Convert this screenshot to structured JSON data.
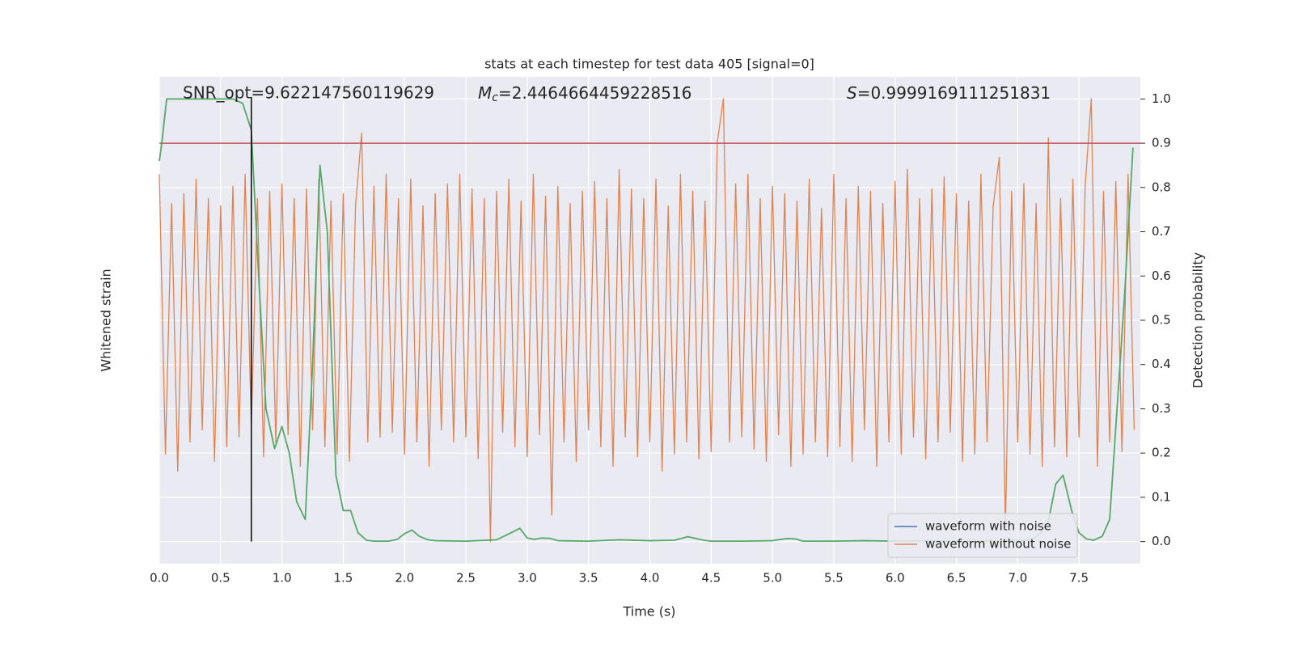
{
  "chart_data": {
    "type": "line",
    "title": "stats at each timestep for test data 405 [signal=0]",
    "x_label": "Time (s)",
    "y_label": "Whitened strain",
    "y2_label": "Detection probability",
    "annotations": [
      {
        "text": "SNR_opt=9.622147560119629"
      },
      {
        "symbol": "M",
        "subscript": "c",
        "text": "=2.4464664459228516"
      },
      {
        "symbol": "S",
        "text": "=0.9999169111251831"
      }
    ],
    "xlim": [
      0,
      8
    ],
    "xticks": [
      {
        "value": 0,
        "label": "0.0"
      },
      0.5,
      {
        "value": 1,
        "label": "1.0"
      },
      1.5,
      {
        "value": 2,
        "label": "2.0"
      },
      2.5,
      {
        "value": 3,
        "label": "3.0"
      },
      3.5,
      {
        "value": 4,
        "label": "4.0"
      },
      4.5,
      {
        "value": 5,
        "label": "5.0"
      },
      5.5,
      {
        "value": 6,
        "label": "6.0"
      },
      6.5,
      {
        "value": 7,
        "label": "7.0"
      },
      7.5
    ],
    "ylim": [
      -1,
      1
    ],
    "y2lim": [
      -0.05,
      1.05
    ],
    "y2ticks": [
      {
        "value": 0,
        "label": "0.0"
      },
      0.1,
      0.2,
      0.3,
      0.4,
      0.5,
      0.6,
      0.7,
      0.8,
      0.9,
      {
        "value": 1,
        "label": "1.0"
      }
    ],
    "grid": true,
    "legend": "lower right",
    "hline": {
      "value": 0.9,
      "axis": "y2",
      "color": "#c44e52"
    },
    "vline": {
      "value": 0.75,
      "color": "#000000"
    },
    "series": [
      {
        "name": "waveform with noise",
        "color": "#4c72b0"
      },
      {
        "name": "waveform without noise",
        "color": "#dd8452",
        "axis": "y",
        "x": [
          0,
          0.05,
          0.1,
          0.15,
          0.2,
          0.25,
          0.3,
          0.35,
          0.4,
          0.45,
          0.5,
          0.55,
          0.6,
          0.65,
          0.7,
          0.75,
          0.8,
          0.85,
          0.9,
          0.95,
          1.0,
          1.05,
          1.1,
          1.15,
          1.2,
          1.25,
          1.3,
          1.35,
          1.4,
          1.45,
          1.5,
          1.55,
          1.6,
          1.65,
          1.7,
          1.75,
          1.8,
          1.85,
          1.9,
          1.95,
          2.0,
          2.05,
          2.1,
          2.15,
          2.2,
          2.25,
          2.3,
          2.35,
          2.4,
          2.45,
          2.5,
          2.55,
          2.6,
          2.65,
          2.7,
          2.75,
          2.8,
          2.85,
          2.9,
          2.95,
          3.0,
          3.05,
          3.1,
          3.15,
          3.2,
          3.25,
          3.3,
          3.35,
          3.4,
          3.45,
          3.5,
          3.55,
          3.6,
          3.65,
          3.7,
          3.75,
          3.8,
          3.85,
          3.9,
          3.95,
          4.0,
          4.05,
          4.1,
          4.15,
          4.2,
          4.25,
          4.3,
          4.35,
          4.4,
          4.45,
          4.5,
          4.55,
          4.6,
          4.65,
          4.7,
          4.75,
          4.8,
          4.85,
          4.9,
          4.95,
          5.0,
          5.05,
          5.1,
          5.15,
          5.2,
          5.25,
          5.3,
          5.35,
          5.4,
          5.45,
          5.5,
          5.55,
          5.6,
          5.65,
          5.7,
          5.75,
          5.8,
          5.85,
          5.9,
          5.95,
          6.0,
          6.05,
          6.1,
          6.15,
          6.2,
          6.25,
          6.3,
          6.35,
          6.4,
          6.45,
          6.5,
          6.55,
          6.6,
          6.65,
          6.7,
          6.75,
          6.8,
          6.85,
          6.9,
          6.95,
          7.0,
          7.05,
          7.1,
          7.15,
          7.2,
          7.25,
          7.3,
          7.35,
          7.4,
          7.45,
          7.5,
          7.55,
          7.6,
          7.65,
          7.7,
          7.75,
          7.8,
          7.85,
          7.9,
          7.95
        ],
        "values": [
          0.6,
          -0.55,
          0.48,
          -0.62,
          0.52,
          -0.5,
          0.58,
          -0.45,
          0.5,
          -0.58,
          0.47,
          -0.52,
          0.55,
          -0.48,
          0.6,
          -0.44,
          0.5,
          -0.56,
          0.53,
          -0.5,
          0.56,
          -0.47,
          0.5,
          -0.6,
          0.54,
          -0.45,
          0.58,
          -0.52,
          0.49,
          -0.55,
          0.52,
          -0.58,
          0.47,
          0.77,
          -0.5,
          0.55,
          -0.48,
          0.6,
          -0.46,
          0.5,
          -0.55,
          0.58,
          -0.5,
          0.47,
          -0.6,
          0.52,
          -0.45,
          0.56,
          -0.5,
          0.6,
          -0.48,
          0.54,
          -0.57,
          0.5,
          -0.91,
          0.53,
          -0.46,
          0.58,
          -0.52,
          0.49,
          -0.56,
          0.6,
          -0.47,
          0.51,
          -0.8,
          0.55,
          -0.5,
          0.48,
          -0.58,
          0.53,
          -0.45,
          0.57,
          -0.52,
          0.5,
          -0.6,
          0.62,
          -0.48,
          0.54,
          -0.56,
          0.5,
          -0.5,
          0.58,
          -0.62,
          0.47,
          -0.55,
          0.6,
          -0.5,
          0.53,
          -0.57,
          0.49,
          -0.54,
          0.73,
          0.91,
          -0.5,
          0.56,
          -0.48,
          0.6,
          -0.53,
          0.5,
          -0.58,
          0.55,
          -0.47,
          0.52,
          -0.6,
          0.49,
          -0.55,
          0.58,
          -0.5,
          0.46,
          -0.56,
          0.6,
          -0.52,
          0.5,
          -0.58,
          0.55,
          -0.45,
          0.53,
          -0.6,
          0.48,
          -0.5,
          0.57,
          -0.55,
          0.62,
          -0.48,
          0.5,
          -0.57,
          0.54,
          -0.5,
          0.59,
          -0.46,
          0.52,
          -0.58,
          0.49,
          -0.55,
          0.6,
          -0.5,
          0.47,
          0.67,
          -0.85,
          0.53,
          -0.5,
          0.56,
          -0.55,
          0.48,
          -0.6,
          0.75,
          -0.52,
          0.5,
          -0.56,
          0.58,
          -0.48,
          0.55,
          0.91,
          -0.6,
          0.53,
          -0.5,
          0.57,
          -0.54,
          0.6,
          -0.45
        ]
      },
      {
        "color": "#55a868",
        "axis": "y2",
        "x": [
          0,
          0.02,
          0.06,
          0.12,
          0.2,
          0.3,
          0.4,
          0.5,
          0.6,
          0.68,
          0.75,
          0.81,
          0.87,
          0.94,
          1.0,
          1.06,
          1.12,
          1.19,
          1.25,
          1.31,
          1.37,
          1.44,
          1.5,
          1.56,
          1.62,
          1.69,
          1.75,
          1.87,
          1.94,
          2.0,
          2.06,
          2.12,
          2.19,
          2.25,
          2.5,
          2.75,
          2.87,
          2.94,
          3.0,
          3.06,
          3.12,
          3.19,
          3.25,
          3.5,
          3.75,
          4.0,
          4.2,
          4.31,
          4.44,
          4.5,
          4.75,
          5.0,
          5.12,
          5.19,
          5.25,
          5.5,
          5.75,
          6.0,
          6.25,
          6.5,
          6.75,
          7.0,
          7.12,
          7.19,
          7.25,
          7.31,
          7.37,
          7.44,
          7.5,
          7.56,
          7.62,
          7.69,
          7.75,
          7.81,
          7.87,
          7.94
        ],
        "values": [
          0.86,
          0.9,
          1.0,
          1.0,
          1.0,
          1.0,
          1.0,
          1.0,
          1.0,
          0.99,
          0.93,
          0.6,
          0.3,
          0.21,
          0.26,
          0.2,
          0.09,
          0.05,
          0.4,
          0.85,
          0.7,
          0.15,
          0.07,
          0.07,
          0.02,
          0.003,
          0.001,
          0.001,
          0.005,
          0.018,
          0.026,
          0.012,
          0.004,
          0.002,
          0.001,
          0.004,
          0.02,
          0.03,
          0.008,
          0.005,
          0.008,
          0.007,
          0.002,
          0.001,
          0.004,
          0.002,
          0.003,
          0.011,
          0.003,
          0.001,
          0.001,
          0.002,
          0.007,
          0.006,
          0.001,
          0.001,
          0.002,
          0.001,
          0.002,
          0.001,
          0.002,
          0.002,
          0.005,
          0.02,
          0.045,
          0.13,
          0.15,
          0.07,
          0.02,
          0.006,
          0.003,
          0.012,
          0.05,
          0.3,
          0.55,
          0.89
        ]
      }
    ]
  }
}
